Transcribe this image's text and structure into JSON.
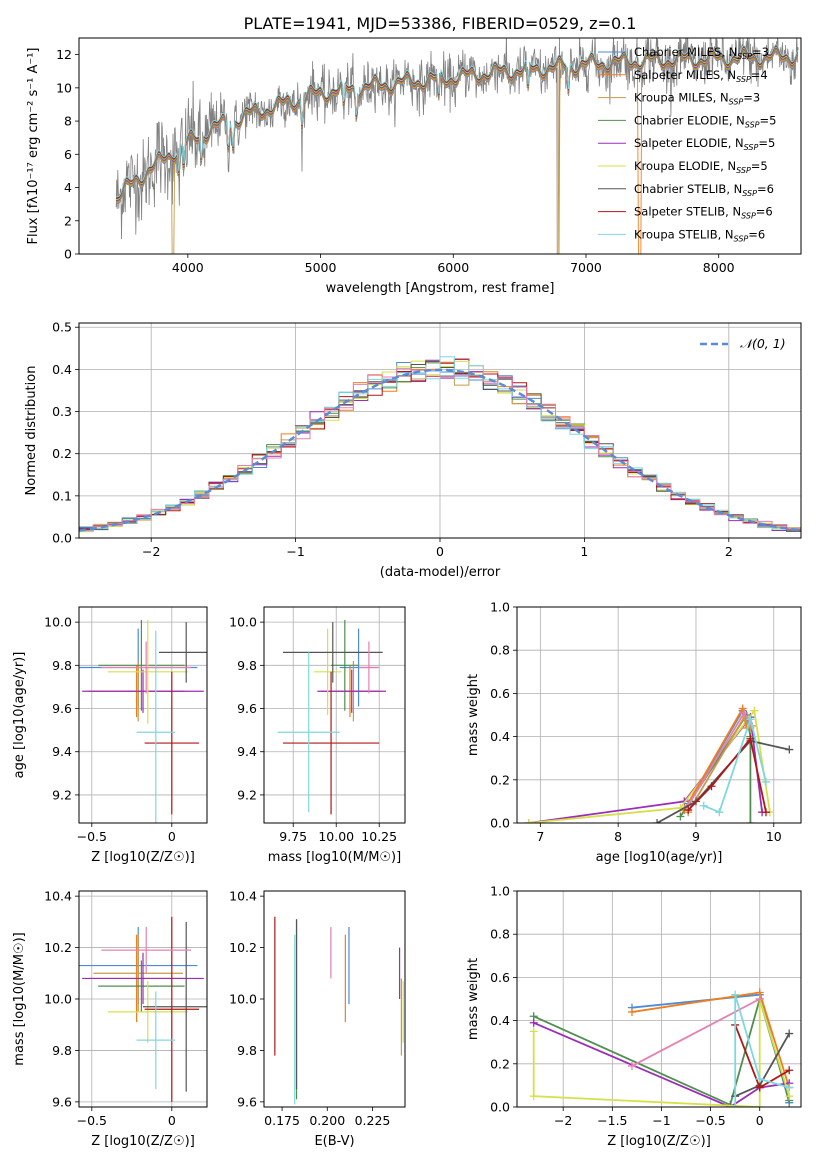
{
  "figure_title": "PLATE=1941, MJD=53386, FIBERID=0529, z=0.1",
  "palette": [
    "#4c8bd6",
    "#f07d1e",
    "#c79a4a",
    "#4f8f4f",
    "#9b2db8",
    "#d6e04a",
    "#555555",
    "#b01818",
    "#7fd8de",
    "#e680b0"
  ],
  "chart_data": [
    {
      "id": "spectrum",
      "type": "line",
      "title": "PLATE=1941, MJD=53386, FIBERID=0529, z=0.1",
      "xlabel": "wavelength [Angstrom, rest frame]",
      "ylabel": "Flux [fλ10⁻¹⁷ erg cm⁻² s⁻¹ A⁻¹]",
      "xlim": [
        3180,
        8620
      ],
      "ylim": [
        0,
        13
      ],
      "xticks": [
        4000,
        5000,
        6000,
        7000,
        8000
      ],
      "yticks": [
        0,
        2,
        4,
        6,
        8,
        10,
        12
      ],
      "grid": false,
      "legend_position": "top-right",
      "continuum_model": {
        "x": [
          3460,
          3600,
          3800,
          4000,
          4200,
          4500,
          4800,
          5000,
          5300,
          5600,
          6000,
          6300,
          6600,
          7000,
          7400,
          7800,
          8200,
          8600
        ],
        "y": [
          3.3,
          4.4,
          5.6,
          6.7,
          7.6,
          8.5,
          9.2,
          9.7,
          10.0,
          10.3,
          10.6,
          10.9,
          11.1,
          11.4,
          11.6,
          11.7,
          11.8,
          11.9
        ]
      },
      "series": [
        {
          "name": "Chabrier MILES, N_SSP=3",
          "label": "Chabrier MILES, N",
          "sub": "SSP",
          "suffix": "=3",
          "color": "#4c8bd6"
        },
        {
          "name": "Salpeter MILES, N_SSP=4",
          "label": "Salpeter MILES, N",
          "sub": "SSP",
          "suffix": "=4",
          "color": "#f07d1e"
        },
        {
          "name": "Kroupa MILES, N_SSP=3",
          "label": "Kroupa MILES, N",
          "sub": "SSP",
          "suffix": "=3",
          "color": "#c79a4a"
        },
        {
          "name": "Chabrier ELODIE, N_SSP=5",
          "label": "Chabrier ELODIE, N",
          "sub": "SSP",
          "suffix": "=5",
          "color": "#4f8f4f"
        },
        {
          "name": "Salpeter ELODIE, N_SSP=5",
          "label": "Salpeter ELODIE, N",
          "sub": "SSP",
          "suffix": "=5",
          "color": "#9b2db8"
        },
        {
          "name": "Kroupa ELODIE, N_SSP=5",
          "label": "Kroupa ELODIE, N",
          "sub": "SSP",
          "suffix": "=5",
          "color": "#d6e04a"
        },
        {
          "name": "Chabrier STELIB, N_SSP=6",
          "label": "Chabrier STELIB, N",
          "sub": "SSP",
          "suffix": "=6",
          "color": "#555555"
        },
        {
          "name": "Salpeter STELIB, N_SSP=6",
          "label": "Salpeter STELIB, N",
          "sub": "SSP",
          "suffix": "=6",
          "color": "#b01818"
        },
        {
          "name": "Kroupa STELIB, N_SSP=6",
          "label": "Kroupa STELIB, N",
          "sub": "SSP",
          "suffix": "=6",
          "color": "#7fd8de"
        }
      ]
    },
    {
      "id": "residuals",
      "type": "line",
      "xlabel": "(data-model)/error",
      "ylabel": "Normed distribution",
      "xlim": [
        -2.5,
        2.5
      ],
      "ylim": [
        0,
        0.51
      ],
      "xticks": [
        -2,
        -1,
        0,
        1,
        2
      ],
      "yticks": [
        0.0,
        0.1,
        0.2,
        0.3,
        0.4,
        0.5
      ],
      "grid": true,
      "legend_position": "top-right",
      "reference_curve": {
        "name": "N(0,1)",
        "label": "𝒩(0, 1)",
        "mean": 0,
        "sigma": 1,
        "color": "#5b8bd6",
        "style": "dashed"
      },
      "histogram": {
        "bin_width": 0.1,
        "range": [
          -2.5,
          2.5
        ]
      }
    },
    {
      "id": "age-vs-z",
      "type": "scatter",
      "xlabel": "Z [log10(Z/Z☉)]",
      "ylabel": "age  [log10(age/yr)]",
      "xlim": [
        -0.58,
        0.22
      ],
      "ylim": [
        9.07,
        10.07
      ],
      "xticks": [
        -0.5,
        0.0
      ],
      "yticks": [
        9.2,
        9.4,
        9.6,
        9.8,
        10.0
      ],
      "grid": true,
      "points": [
        {
          "x": -0.21,
          "y": 9.79,
          "xerr": 0.37,
          "yerr": 0.18,
          "color": "#4c8bd6"
        },
        {
          "x": -0.22,
          "y": 9.68,
          "xerr": 0.3,
          "yerr": 0.12,
          "color": "#f07d1e"
        },
        {
          "x": -0.21,
          "y": 9.68,
          "xerr": 0.28,
          "yerr": 0.14,
          "color": "#c79a4a"
        },
        {
          "x": -0.19,
          "y": 9.8,
          "xerr": 0.27,
          "yerr": 0.21,
          "color": "#4f8f4f"
        },
        {
          "x": -0.18,
          "y": 9.68,
          "xerr": 0.38,
          "yerr": 0.1,
          "color": "#9b2db8"
        },
        {
          "x": -0.15,
          "y": 9.77,
          "xerr": 0.25,
          "yerr": 0.24,
          "color": "#d6e04a"
        },
        {
          "x": 0.09,
          "y": 9.86,
          "xerr": 0.17,
          "yerr": 0.14,
          "color": "#555555"
        },
        {
          "x": 0.0,
          "y": 9.44,
          "xerr": 0.17,
          "yerr": 0.33,
          "color": "#b01818"
        },
        {
          "x": -0.1,
          "y": 9.49,
          "xerr": 0.12,
          "yerr": 0.47,
          "color": "#7fd8de"
        },
        {
          "x": -0.16,
          "y": 9.79,
          "xerr": 0.28,
          "yerr": 0.12,
          "color": "#e680b0"
        }
      ]
    },
    {
      "id": "age-vs-mass",
      "type": "scatter",
      "xlabel": "mass [log10(M/M☉)]",
      "ylabel": "",
      "xlim": [
        9.58,
        10.4
      ],
      "ylim": [
        9.07,
        10.07
      ],
      "xticks": [
        9.75,
        10.0,
        10.25
      ],
      "xticklabels": [
        "9.75",
        "10.00",
        "10.25"
      ],
      "yticks": [
        9.2,
        9.4,
        9.6,
        9.8,
        10.0
      ],
      "grid": true,
      "points": [
        {
          "x": 10.13,
          "y": 9.79,
          "xerr": 0.11,
          "yerr": 0.18,
          "color": "#4c8bd6"
        },
        {
          "x": 10.08,
          "y": 9.68,
          "xerr": 0.17,
          "yerr": 0.12,
          "color": "#f07d1e"
        },
        {
          "x": 10.1,
          "y": 9.68,
          "xerr": 0.14,
          "yerr": 0.14,
          "color": "#c79a4a"
        },
        {
          "x": 10.05,
          "y": 9.8,
          "xerr": 0.08,
          "yerr": 0.21,
          "color": "#4f8f4f"
        },
        {
          "x": 10.09,
          "y": 9.68,
          "xerr": 0.2,
          "yerr": 0.1,
          "color": "#9b2db8"
        },
        {
          "x": 9.95,
          "y": 9.77,
          "xerr": 0.08,
          "yerr": 0.2,
          "color": "#d6e04a"
        },
        {
          "x": 9.98,
          "y": 9.86,
          "xerr": 0.29,
          "yerr": 0.14,
          "color": "#555555"
        },
        {
          "x": 9.97,
          "y": 9.44,
          "xerr": 0.28,
          "yerr": 0.33,
          "color": "#b01818"
        },
        {
          "x": 9.84,
          "y": 9.49,
          "xerr": 0.18,
          "yerr": 0.37,
          "color": "#7fd8de"
        },
        {
          "x": 10.19,
          "y": 9.79,
          "xerr": 0.06,
          "yerr": 0.12,
          "color": "#e680b0"
        }
      ]
    },
    {
      "id": "weight-vs-age",
      "type": "line",
      "xlabel": "age  [log10(age/yr)]",
      "ylabel": "mass weight",
      "xlim": [
        6.7,
        10.35
      ],
      "ylim": [
        0,
        1.0
      ],
      "xticks": [
        7,
        8,
        9,
        10
      ],
      "yticks": [
        0.0,
        0.2,
        0.4,
        0.6,
        0.8,
        1.0
      ],
      "grid": true,
      "series": [
        {
          "color": "#9b2db8",
          "x": [
            6.85,
            8.85,
            9.7,
            9.85
          ],
          "y": [
            0.0,
            0.1,
            0.49,
            0.05
          ]
        },
        {
          "color": "#d6e04a",
          "x": [
            6.85,
            8.8,
            9.75,
            9.95
          ],
          "y": [
            0.0,
            0.07,
            0.52,
            0.05
          ]
        },
        {
          "color": "#4f8f4f",
          "x": [
            8.8,
            9.65,
            9.7,
            9.7
          ],
          "y": [
            0.03,
            0.5,
            0.4,
            0.0
          ]
        },
        {
          "color": "#4c8bd6",
          "x": [
            8.9,
            9.6,
            9.68
          ],
          "y": [
            0.09,
            0.52,
            0.46
          ]
        },
        {
          "color": "#f07d1e",
          "x": [
            8.85,
            9.6,
            9.65
          ],
          "y": [
            0.06,
            0.53,
            0.44
          ]
        },
        {
          "color": "#c79a4a",
          "x": [
            8.9,
            9.62,
            9.7
          ],
          "y": [
            0.05,
            0.49,
            0.44
          ]
        },
        {
          "color": "#e680b0",
          "x": [
            8.9,
            9.62,
            9.72
          ],
          "y": [
            0.08,
            0.51,
            0.45
          ]
        },
        {
          "color": "#555555",
          "x": [
            8.5,
            9.0,
            9.7,
            10.2
          ],
          "y": [
            0.0,
            0.1,
            0.38,
            0.34
          ]
        },
        {
          "color": "#b01818",
          "x": [
            8.9,
            9.2,
            9.7,
            9.9
          ],
          "y": [
            0.06,
            0.17,
            0.39,
            0.05
          ]
        },
        {
          "color": "#7fd8de",
          "x": [
            9.1,
            9.3,
            9.7,
            9.9
          ],
          "y": [
            0.08,
            0.05,
            0.48,
            0.19
          ]
        }
      ]
    },
    {
      "id": "mass-vs-z",
      "type": "scatter",
      "xlabel": "Z [log10(Z/Z☉)]",
      "ylabel": "mass [log10(M/M☉)]",
      "xlim": [
        -0.58,
        0.22
      ],
      "ylim": [
        9.58,
        10.42
      ],
      "xticks": [
        -0.5,
        0.0
      ],
      "yticks": [
        9.6,
        9.8,
        10.0,
        10.2,
        10.4
      ],
      "grid": true,
      "points": [
        {
          "x": -0.21,
          "y": 10.13,
          "xerr": 0.37,
          "yerr": 0.15,
          "color": "#4c8bd6"
        },
        {
          "x": -0.22,
          "y": 10.08,
          "xerr": 0.3,
          "yerr": 0.17,
          "color": "#f07d1e"
        },
        {
          "x": -0.21,
          "y": 10.1,
          "xerr": 0.28,
          "yerr": 0.15,
          "color": "#c79a4a"
        },
        {
          "x": -0.19,
          "y": 10.05,
          "xerr": 0.27,
          "yerr": 0.1,
          "color": "#4f8f4f"
        },
        {
          "x": -0.18,
          "y": 10.08,
          "xerr": 0.38,
          "yerr": 0.1,
          "color": "#9b2db8"
        },
        {
          "x": -0.15,
          "y": 9.95,
          "xerr": 0.25,
          "yerr": 0.12,
          "color": "#d6e04a"
        },
        {
          "x": 0.09,
          "y": 9.97,
          "xerr": 0.27,
          "yerr": 0.33,
          "color": "#555555"
        },
        {
          "x": 0.0,
          "y": 9.96,
          "xerr": 0.17,
          "yerr": 0.36,
          "color": "#b01818"
        },
        {
          "x": -0.1,
          "y": 9.84,
          "xerr": 0.12,
          "yerr": 0.19,
          "color": "#7fd8de"
        },
        {
          "x": -0.16,
          "y": 10.19,
          "xerr": 0.28,
          "yerr": 0.09,
          "color": "#e680b0"
        }
      ]
    },
    {
      "id": "mass-vs-ebv",
      "type": "scatter",
      "xlabel": "E(B-V)",
      "ylabel": "",
      "xlim": [
        0.165,
        0.243
      ],
      "ylim": [
        9.58,
        10.42
      ],
      "xticks": [
        0.175,
        0.2,
        0.225
      ],
      "xticklabels": [
        "0.175",
        "0.200",
        "0.225"
      ],
      "yticks": [
        9.6,
        9.8,
        10.0,
        10.2,
        10.4
      ],
      "grid": false,
      "points": [
        {
          "x": 0.212,
          "y": 10.13,
          "yerr": 0.15,
          "color": "#4c8bd6"
        },
        {
          "x": 0.21,
          "y": 10.08,
          "yerr": 0.17,
          "color": "#f07d1e"
        },
        {
          "x": 0.241,
          "y": 9.93,
          "yerr": 0.15,
          "color": "#c79a4a"
        },
        {
          "x": 0.183,
          "y": 9.96,
          "yerr": 0.35,
          "color": "#4f8f4f"
        },
        {
          "x": 0.24,
          "y": 10.1,
          "yerr": 0.1,
          "color": "#9b2db8"
        },
        {
          "x": 0.242,
          "y": 9.95,
          "yerr": 0.12,
          "color": "#d6e04a"
        },
        {
          "x": 0.183,
          "y": 9.98,
          "yerr": 0.33,
          "color": "#555555"
        },
        {
          "x": 0.171,
          "y": 10.05,
          "yerr": 0.27,
          "color": "#b01818"
        },
        {
          "x": 0.182,
          "y": 9.92,
          "yerr": 0.33,
          "color": "#7fd8de"
        },
        {
          "x": 0.202,
          "y": 10.18,
          "yerr": 0.1,
          "color": "#e680b0"
        }
      ]
    },
    {
      "id": "weight-vs-z",
      "type": "line",
      "xlabel": "Z [log10(Z/Z☉)]",
      "ylabel": "mass weight",
      "xlim": [
        -2.47,
        0.42
      ],
      "ylim": [
        0,
        1.0
      ],
      "xticks": [
        -2.0,
        -1.5,
        -1.0,
        -0.5,
        0.0
      ],
      "yticks": [
        0.0,
        0.2,
        0.4,
        0.6,
        0.8,
        1.0
      ],
      "grid": true,
      "series": [
        {
          "color": "#4c8bd6",
          "x": [
            -1.3,
            0.0,
            0.3
          ],
          "y": [
            0.46,
            0.52,
            0.02
          ]
        },
        {
          "color": "#f07d1e",
          "x": [
            -1.3,
            0.0,
            0.3
          ],
          "y": [
            0.44,
            0.53,
            0.09
          ]
        },
        {
          "color": "#4f8f4f",
          "x": [
            -2.3,
            -0.3,
            0.0,
            0.3
          ],
          "y": [
            0.42,
            0.01,
            0.5,
            0.03
          ]
        },
        {
          "color": "#9b2db8",
          "x": [
            -2.3,
            -0.3,
            0.0,
            0.3
          ],
          "y": [
            0.39,
            0.0,
            0.09,
            0.11
          ]
        },
        {
          "color": "#d6e04a",
          "x": [
            -2.3,
            -2.3,
            0.0,
            0.0,
            0.3
          ],
          "y": [
            0.35,
            0.05,
            0.0,
            0.5,
            0.05
          ]
        },
        {
          "color": "#e680b0",
          "x": [
            -1.3,
            0.0
          ],
          "y": [
            0.19,
            0.5
          ]
        },
        {
          "color": "#555555",
          "x": [
            -0.25,
            0.0,
            0.3
          ],
          "y": [
            0.05,
            0.1,
            0.34
          ]
        },
        {
          "color": "#b01818",
          "x": [
            -0.25,
            0.0,
            0.3
          ],
          "y": [
            0.38,
            0.09,
            0.17
          ]
        },
        {
          "color": "#7fd8de",
          "x": [
            -0.25,
            -0.25,
            0.0,
            0.3
          ],
          "y": [
            0.0,
            0.52,
            0.13,
            0.09
          ]
        }
      ]
    }
  ]
}
